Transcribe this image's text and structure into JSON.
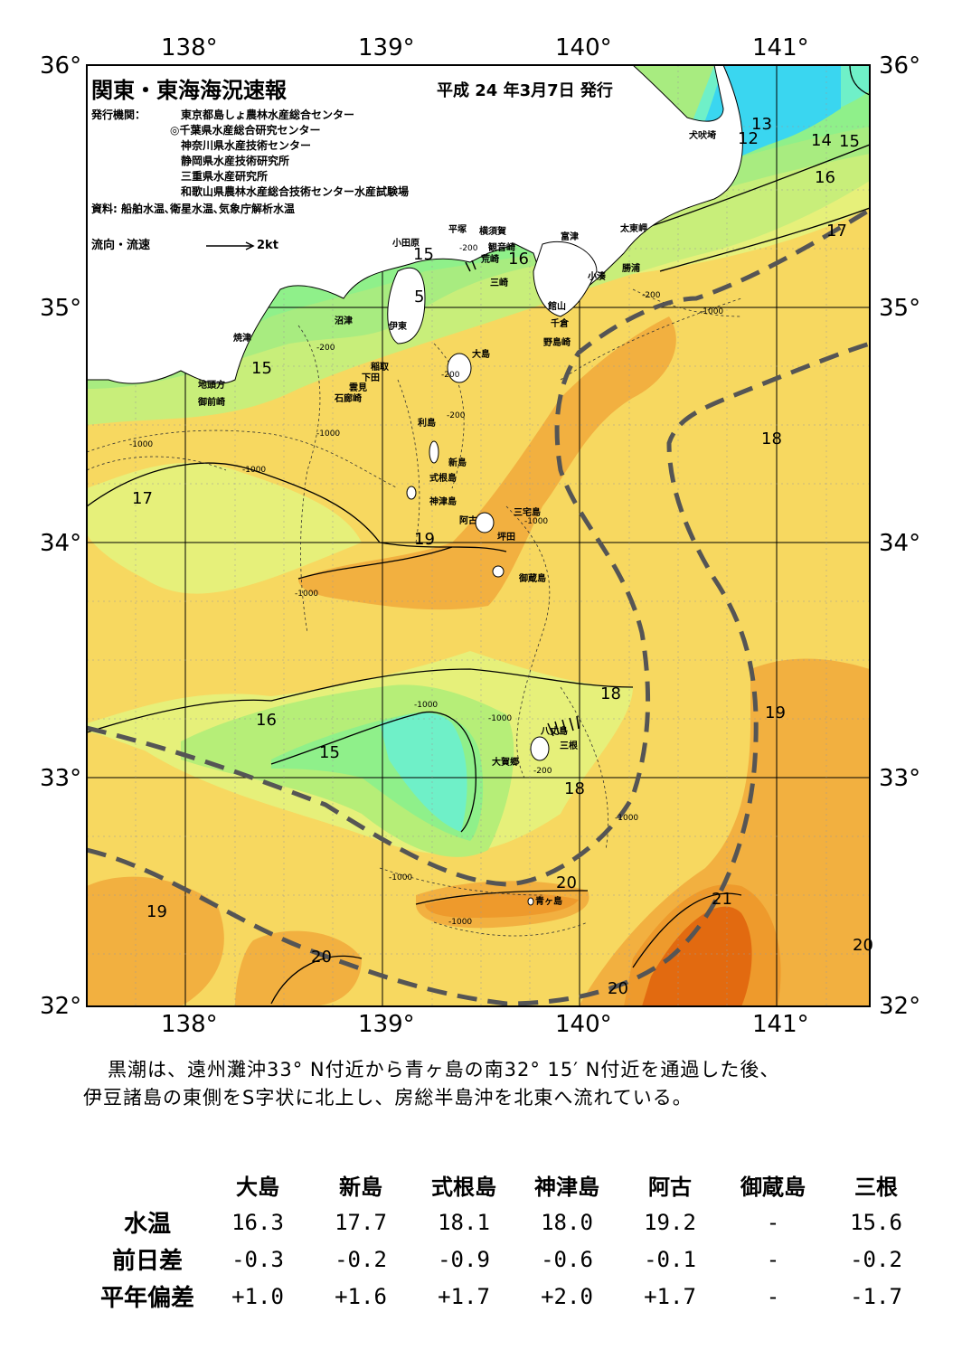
{
  "title": "関東・東海海況速報",
  "issue_date": "平成 24 年3月7日 発行",
  "publisher_label": "発行機関：",
  "publishers": [
    "東京都島しょ農林水産総合センター",
    "◎千葉県水産総合研究センター",
    "神奈川県水産技術センター",
    "静岡県水産技術研究所",
    "三重県水産研究所",
    "和歌山県農林水産総合技術センター水産試験場"
  ],
  "source": "資料: 船舶水温､衛星水温､気象庁解析水温",
  "legend_flow": "流向・流速",
  "legend_speed": "2kt",
  "axes": {
    "lon_labels": [
      "138°",
      "139°",
      "140°",
      "141°"
    ],
    "lat_labels": [
      "36°",
      "35°",
      "34°",
      "33°",
      "32°"
    ]
  },
  "place_names": {
    "inubozaki": "犬吠埼",
    "taitomisaki": "太東岬",
    "katsuura": "勝浦",
    "kominato": "小湊",
    "futtsu": "富津",
    "tateyama": "館山",
    "chikura": "千倉",
    "nojimazaki": "野島崎",
    "yokosuka": "横須賀",
    "kannonzaki": "観音崎",
    "arasaki": "荒崎",
    "misaki": "三崎",
    "hiratsuka": "平塚",
    "odawara": "小田原",
    "numazu": "沼津",
    "ito": "伊東",
    "inatori": "稲取",
    "shimoda": "下田",
    "mikomoto": "雲見",
    "irozaki": "石廊崎",
    "yaizu": "焼津",
    "jitoukata": "地頭方",
    "omaezaki": "御前崎",
    "oshima": "大島",
    "toshima": "利島",
    "niijima": "新島",
    "shikinejima": "式根島",
    "kozushima": "神津島",
    "miyakejima": "三宅島",
    "ako": "阿古",
    "tsubota": "坪田",
    "mikurajima": "御蔵島",
    "hachijojima": "八丈島",
    "sanne": "三根",
    "okago": "大賀郷",
    "aogashima": "青ヶ島"
  },
  "isotherm_labels": [
    "13",
    "12",
    "14",
    "15",
    "16",
    "17",
    "15",
    "16",
    "5",
    "15",
    "17",
    "19",
    "18",
    "18",
    "16",
    "15",
    "18",
    "19",
    "20",
    "21",
    "20",
    "19",
    "20",
    "20"
  ],
  "depth_labels": [
    "-200",
    "-200",
    "-200",
    "-200",
    "-200",
    "-1000",
    "-1000",
    "-1000",
    "-1000",
    "-1000",
    "-1000",
    "-1000",
    "-1000",
    "-1000",
    "-200",
    "-1000",
    "-1000"
  ],
  "summary_line1": "黒潮は、遠州灘沖33° N付近から青ヶ島の南32° 15′ N付近を通過した後、",
  "summary_line2": "伊豆諸島の東側をS字状に北上し、房総半島沖を北東へ流れている。",
  "table": {
    "columns": [
      "大島",
      "新島",
      "式根島",
      "神津島",
      "阿古",
      "御蔵島",
      "三根"
    ],
    "rows": [
      {
        "label": "水温",
        "values": [
          "16.3",
          "17.7",
          "18.1",
          "18.0",
          "19.2",
          "-",
          "15.6"
        ]
      },
      {
        "label": "前日差",
        "values": [
          "-0.3",
          "-0.2",
          "-0.9",
          "-0.6",
          "-0.1",
          "-",
          "-0.2"
        ]
      },
      {
        "label": "平年偏差",
        "values": [
          "+1.0",
          "+1.6",
          "+1.7",
          "+2.0",
          "+1.7",
          "-",
          "-1.7"
        ]
      }
    ]
  },
  "colors": {
    "temp_12": "#3ad6f0",
    "temp_14": "#6ff0c8",
    "temp_15": "#8ff08a",
    "temp_16": "#b6ee78",
    "temp_17": "#e6f07a",
    "temp_18": "#f7d860",
    "temp_19": "#f2b040",
    "temp_20": "#ee9a2c",
    "temp_21": "#e26a10",
    "land": "#ffffff",
    "kuroshio": "#555555"
  }
}
